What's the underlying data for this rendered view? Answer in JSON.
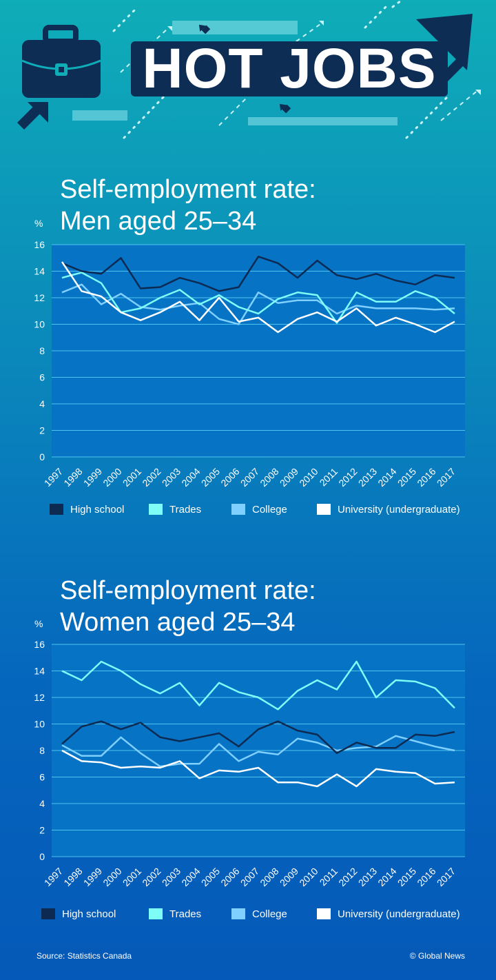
{
  "header": {
    "title": "HOT JOBS"
  },
  "colors": {
    "high_school": "#0d2a52",
    "trades": "#7dfdf5",
    "college": "#7fd0ff",
    "university": "#ffffff",
    "plot_bg": "#0673c4",
    "gridline": "#4ec4f0"
  },
  "chart_data": [
    {
      "type": "line",
      "title": "Self-employment rate: Men aged 25–34",
      "title_lines": [
        "Self-employment rate:",
        "Men aged 25–34"
      ],
      "ylabel": "%",
      "ylim": [
        0,
        16
      ],
      "yticks": [
        "0",
        "2",
        "4",
        "6",
        "8",
        "10",
        "12",
        "14",
        "16"
      ],
      "grid": true,
      "legend_position": "bottom",
      "x": [
        "1997",
        "1998",
        "1999",
        "2000",
        "2001",
        "2002",
        "2003",
        "2004",
        "2005",
        "2006",
        "2007",
        "2008",
        "2009",
        "2010",
        "2011",
        "2012",
        "2013",
        "2014",
        "2015",
        "2016",
        "2017"
      ],
      "series": [
        {
          "name": "High school",
          "key": "high_school",
          "values": [
            14.6,
            14.0,
            13.8,
            15.0,
            12.7,
            12.8,
            13.5,
            13.1,
            12.5,
            12.8,
            15.1,
            14.6,
            13.5,
            14.8,
            13.7,
            13.4,
            13.8,
            13.3,
            13.0,
            13.7,
            13.5
          ]
        },
        {
          "name": "Trades",
          "key": "trades",
          "values": [
            13.5,
            13.9,
            13.1,
            10.9,
            11.2,
            12.0,
            12.6,
            11.5,
            12.2,
            11.3,
            10.8,
            11.9,
            12.4,
            12.2,
            10.1,
            12.4,
            11.7,
            11.7,
            12.5,
            12.0,
            10.8
          ]
        },
        {
          "name": "College",
          "key": "college",
          "values": [
            12.4,
            13.0,
            11.5,
            12.3,
            11.3,
            11.1,
            11.4,
            11.6,
            10.4,
            10.0,
            12.4,
            11.6,
            11.8,
            11.8,
            10.8,
            11.4,
            11.2,
            11.2,
            11.2,
            11.1,
            11.2
          ]
        },
        {
          "name": "University (undergraduate)",
          "key": "university",
          "values": [
            14.7,
            12.5,
            12.1,
            10.9,
            10.3,
            10.9,
            11.7,
            10.3,
            12.0,
            10.2,
            10.5,
            9.4,
            10.4,
            10.9,
            10.2,
            11.2,
            9.9,
            10.5,
            10.0,
            9.4,
            10.2
          ]
        }
      ]
    },
    {
      "type": "line",
      "title": "Self-employment rate: Women aged 25–34",
      "title_lines": [
        "Self-employment rate:",
        "Women aged 25–34"
      ],
      "ylabel": "%",
      "ylim": [
        0,
        16
      ],
      "yticks": [
        "0",
        "2",
        "4",
        "6",
        "8",
        "10",
        "12",
        "14",
        "16"
      ],
      "grid": true,
      "legend_position": "bottom",
      "x": [
        "1997",
        "1998",
        "1999",
        "2000",
        "2001",
        "2002",
        "2003",
        "2004",
        "2005",
        "2006",
        "2007",
        "2008",
        "2009",
        "2010",
        "2011",
        "2012",
        "2013",
        "2014",
        "2015",
        "2016",
        "2017"
      ],
      "series": [
        {
          "name": "High school",
          "key": "high_school",
          "values": [
            8.5,
            9.8,
            10.2,
            9.6,
            10.1,
            9.0,
            8.7,
            9.0,
            9.3,
            8.3,
            9.6,
            10.2,
            9.5,
            9.2,
            7.8,
            8.6,
            8.2,
            8.2,
            9.2,
            9.1,
            9.4
          ]
        },
        {
          "name": "Trades",
          "key": "trades",
          "values": [
            14.0,
            13.3,
            14.7,
            14.0,
            13.0,
            12.3,
            13.1,
            11.4,
            13.1,
            12.4,
            12.0,
            11.1,
            12.5,
            13.3,
            12.6,
            14.7,
            12.0,
            13.3,
            13.2,
            12.7,
            11.2
          ]
        },
        {
          "name": "College",
          "key": "college",
          "values": [
            8.4,
            7.6,
            7.6,
            9.0,
            7.8,
            6.8,
            7.0,
            7.0,
            8.5,
            7.2,
            7.9,
            7.7,
            8.9,
            8.6,
            8.0,
            8.2,
            8.3,
            9.1,
            8.7,
            8.3,
            8.0
          ]
        },
        {
          "name": "University (undergraduate)",
          "key": "university",
          "values": [
            8.0,
            7.2,
            7.1,
            6.7,
            6.8,
            6.7,
            7.2,
            5.9,
            6.5,
            6.4,
            6.7,
            5.6,
            5.6,
            5.3,
            6.2,
            5.3,
            6.6,
            6.4,
            6.3,
            5.5,
            5.6
          ]
        }
      ]
    }
  ],
  "legend": [
    {
      "label": "High school",
      "key": "high_school"
    },
    {
      "label": "Trades",
      "key": "trades"
    },
    {
      "label": "College",
      "key": "college"
    },
    {
      "label": "University (undergraduate)",
      "key": "university"
    }
  ],
  "footer": {
    "source": "Source: Statistics Canada",
    "credit": "© Global News"
  }
}
